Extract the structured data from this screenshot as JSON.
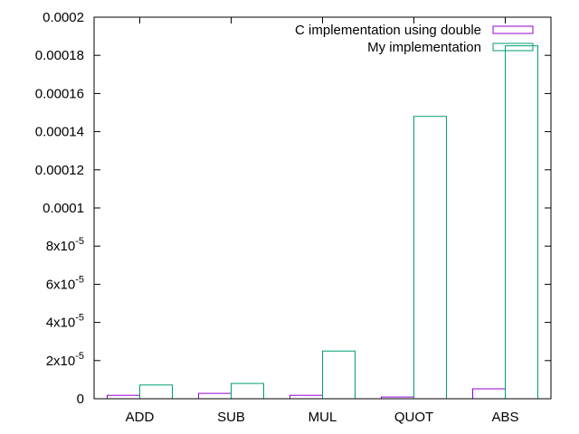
{
  "chart_data": {
    "type": "bar",
    "categories": [
      "ADD",
      "SUB",
      "MUL",
      "QUOT",
      "ABS"
    ],
    "series": [
      {
        "name": "C implementation using double",
        "color": "#9400d3",
        "values": [
          1.8e-06,
          2.8e-06,
          1.8e-06,
          9e-07,
          5.2e-06
        ]
      },
      {
        "name": "My implementation",
        "color": "#009e73",
        "values": [
          7.2e-06,
          8e-06,
          2.5e-05,
          0.000148,
          0.000185
        ]
      }
    ],
    "ylim": [
      0,
      0.0002
    ],
    "yticks": [
      {
        "value": 0,
        "base": "0",
        "exp": ""
      },
      {
        "value": 2e-05,
        "base": "2x10",
        "exp": "-5"
      },
      {
        "value": 4e-05,
        "base": "4x10",
        "exp": "-5"
      },
      {
        "value": 6e-05,
        "base": "6x10",
        "exp": "-5"
      },
      {
        "value": 8e-05,
        "base": "8x10",
        "exp": "-5"
      },
      {
        "value": 0.0001,
        "base": "0.0001",
        "exp": ""
      },
      {
        "value": 0.00012,
        "base": "0.00012",
        "exp": ""
      },
      {
        "value": 0.00014,
        "base": "0.00014",
        "exp": ""
      },
      {
        "value": 0.00016,
        "base": "0.00016",
        "exp": ""
      },
      {
        "value": 0.00018,
        "base": "0.00018",
        "exp": ""
      },
      {
        "value": 0.0002,
        "base": "0.0002",
        "exp": ""
      }
    ],
    "grid": false,
    "legend_position": "top-right",
    "title": "",
    "xlabel": "",
    "ylabel": ""
  }
}
